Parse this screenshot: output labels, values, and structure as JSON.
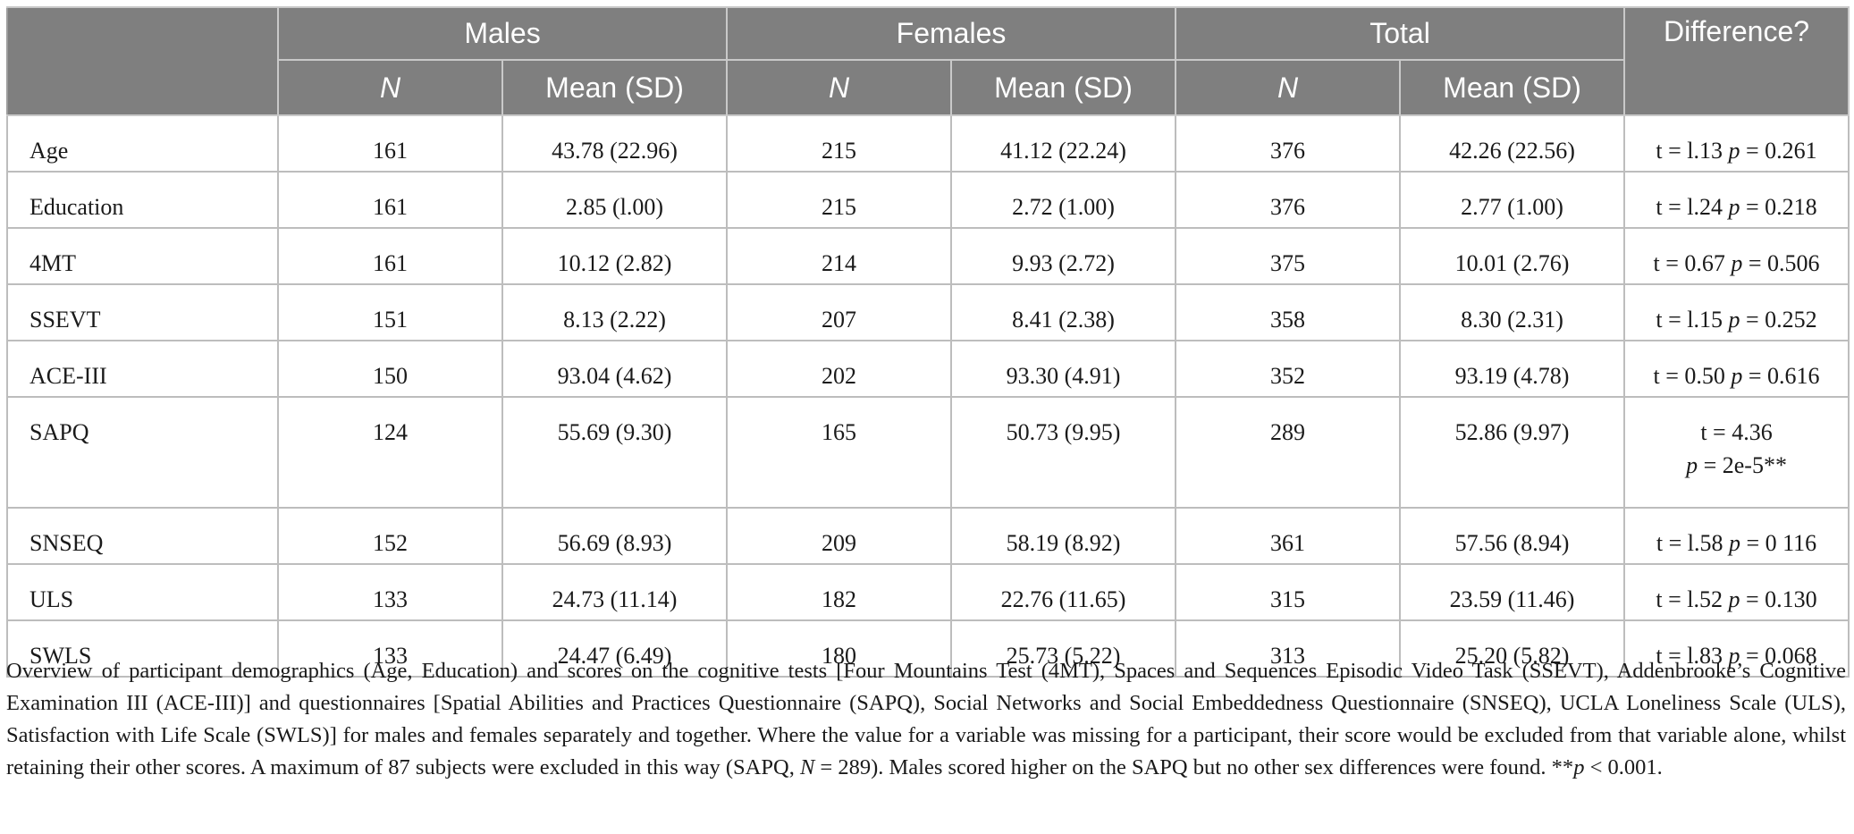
{
  "header": {
    "groups": [
      "Males",
      "Females",
      "Total",
      "Difference?"
    ],
    "n_label": "N",
    "mean_label": "Mean (SD)"
  },
  "rows": [
    {
      "label": "Age",
      "m_n": "161",
      "m_mean": "43.78 (22.96)",
      "f_n": "215",
      "f_mean": "41.12 (22.24)",
      "t_n": "376",
      "t_mean": "42.26 (22.56)",
      "diff_t": "t = l.13",
      "diff_p_label": "p",
      "diff_p_value": "= 0.261"
    },
    {
      "label": "Education",
      "m_n": "161",
      "m_mean": "2.85 (l.00)",
      "f_n": "215",
      "f_mean": "2.72 (1.00)",
      "t_n": "376",
      "t_mean": "2.77 (1.00)",
      "diff_t": "t = l.24",
      "diff_p_label": "p",
      "diff_p_value": "= 0.218"
    },
    {
      "label": "4MT",
      "m_n": "161",
      "m_mean": "10.12 (2.82)",
      "f_n": "214",
      "f_mean": "9.93 (2.72)",
      "t_n": "375",
      "t_mean": "10.01 (2.76)",
      "diff_t": "t = 0.67",
      "diff_p_label": "p",
      "diff_p_value": "= 0.506"
    },
    {
      "label": "SSEVT",
      "m_n": "151",
      "m_mean": "8.13 (2.22)",
      "f_n": "207",
      "f_mean": "8.41 (2.38)",
      "t_n": "358",
      "t_mean": "8.30 (2.31)",
      "diff_t": "t = l.15",
      "diff_p_label": "p",
      "diff_p_value": "= 0.252"
    },
    {
      "label": "ACE-III",
      "m_n": "150",
      "m_mean": "93.04 (4.62)",
      "f_n": "202",
      "f_mean": "93.30 (4.91)",
      "t_n": "352",
      "t_mean": "93.19 (4.78)",
      "diff_t": "t = 0.50",
      "diff_p_label": "p",
      "diff_p_value": "= 0.616"
    },
    {
      "label": "SAPQ",
      "m_n": "124",
      "m_mean": "55.69 (9.30)",
      "f_n": "165",
      "f_mean": "50.73 (9.95)",
      "t_n": "289",
      "t_mean": "52.86 (9.97)",
      "diff_t": "t = 4.36",
      "diff_p_label": "p",
      "diff_p_value": "= 2e-5**"
    },
    {
      "label": "SNSEQ",
      "m_n": "152",
      "m_mean": "56.69 (8.93)",
      "f_n": "209",
      "f_mean": "58.19 (8.92)",
      "t_n": "361",
      "t_mean": "57.56 (8.94)",
      "diff_t": "t = l.58",
      "diff_p_label": "p",
      "diff_p_value": "= 0 116"
    },
    {
      "label": "ULS",
      "m_n": "133",
      "m_mean": "24.73 (11.14)",
      "f_n": "182",
      "f_mean": "22.76 (11.65)",
      "t_n": "315",
      "t_mean": "23.59 (11.46)",
      "diff_t": "t = l.52",
      "diff_p_label": "p",
      "diff_p_value": "= 0.130"
    },
    {
      "label": "SWLS",
      "m_n": "133",
      "m_mean": "24.47 (6.49)",
      "f_n": "180",
      "f_mean": "25.73 (5.22)",
      "t_n": "313",
      "t_mean": "25.20 (5.82)",
      "diff_t": "t = l.83",
      "diff_p_label": "p",
      "diff_p_value": "= 0.068"
    }
  ],
  "caption": {
    "part1": "Overview of participant demographics (Age, Education) and scores on the cognitive tests [Four Mountains Test (4MT), Spaces and Sequences Episodic Video Task (SSEVT), Addenbrooke’s Cognitive Examination III (ACE-III)] and questionnaires [Spatial Abilities and Practices Questionnaire (SAPQ), Social Networks and Social Embeddedness Questionnaire (SNSEQ), UCLA Loneliness Scale (ULS), Satisfaction with Life Scale (SWLS)] for males and females separately and together. Where the value for a variable was missing for a participant, their score would be excluded from that variable alone, whilst retaining their other scores. A maximum of 87 subjects were excluded in this way (SAPQ, ",
    "n_italic": "N",
    "part2": " = 289). Males scored higher on the SAPQ but no other sex differences were found. **",
    "p_italic": "p",
    "part3": " < 0.001."
  },
  "colors": {
    "header_bg": "#7f7f7f",
    "header_text": "#ffffff",
    "grid": "#bdbdbd"
  }
}
